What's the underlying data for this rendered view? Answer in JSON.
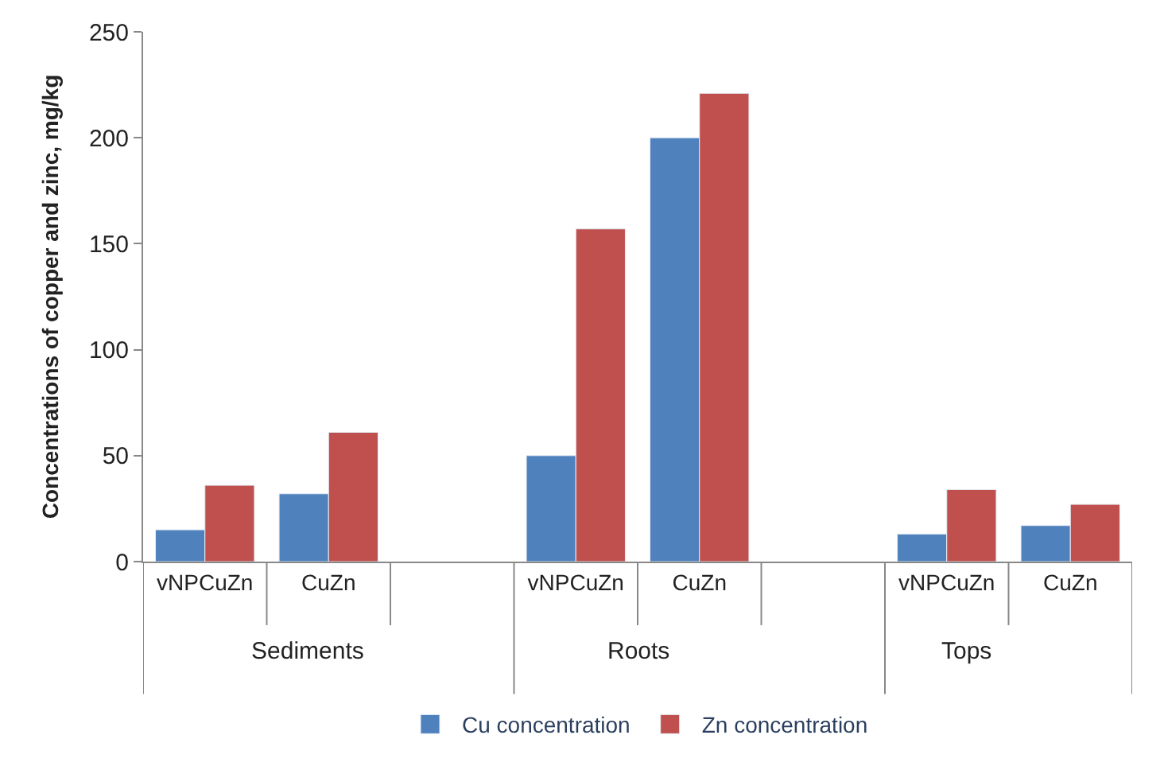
{
  "chart_data": {
    "type": "bar",
    "ylabel": "Concentrations of copper and zinc, mg/kg",
    "categories": [
      "vNPCuZn",
      "CuZn",
      null,
      "vNPCuZn",
      "CuZn",
      null,
      "vNPCuZn",
      "CuZn"
    ],
    "series": [
      {
        "name": "Cu concentration",
        "color": "#4f81bd",
        "values": [
          15,
          32,
          null,
          50,
          200,
          null,
          13,
          17
        ]
      },
      {
        "name": "Zn concentration",
        "color": "#c0504d",
        "values": [
          36,
          61,
          null,
          157,
          221,
          null,
          34,
          27
        ]
      }
    ],
    "annotations": [
      "Sediments",
      "Roots",
      "Tops"
    ],
    "ylim": [
      0,
      250
    ],
    "yticks": [
      0,
      50,
      100,
      150,
      200,
      250
    ],
    "legend": "bottom"
  }
}
